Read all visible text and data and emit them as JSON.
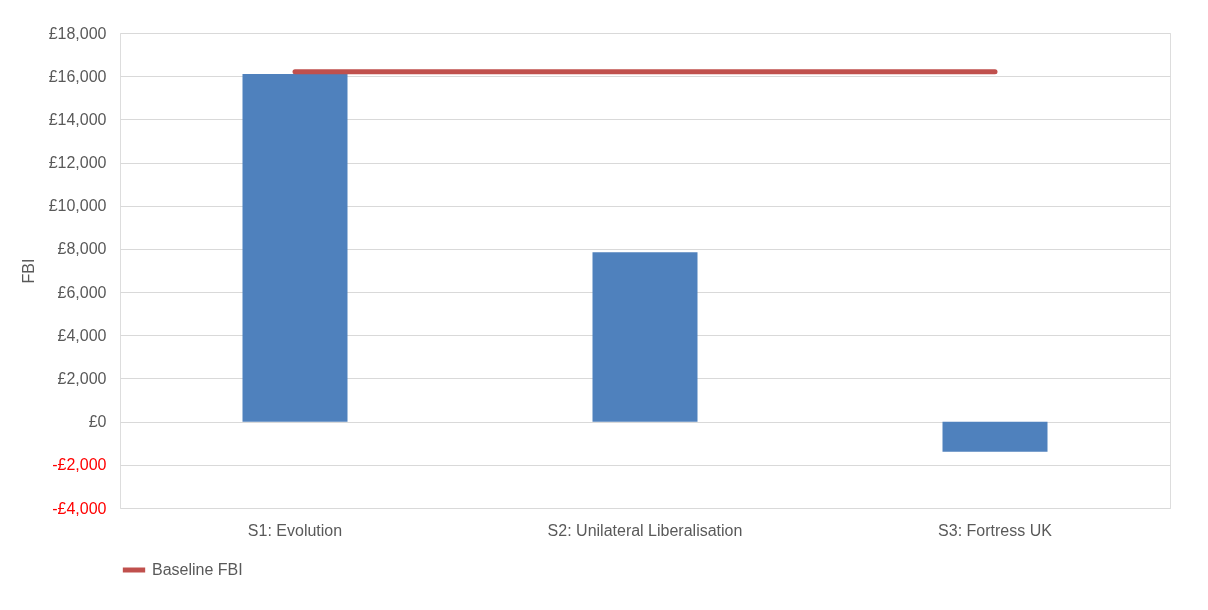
{
  "chart_data": {
    "type": "bar",
    "ylabel": "FBI",
    "categories": [
      "S1: Evolution",
      "S2: Unilateral Liberalisation",
      "S3: Fortress UK"
    ],
    "series": [
      {
        "color": "#4f81bd",
        "values": [
          16100,
          7850,
          -1400
        ]
      },
      {
        "type": "line",
        "name": "Baseline FBI",
        "color": "#c0504d",
        "values": [
          16200,
          16200,
          16200
        ]
      }
    ],
    "ylim": [
      -4000,
      18000
    ],
    "yticks": [
      {
        "value": -4000,
        "label": "-£4,000"
      },
      {
        "value": -2000,
        "label": "-£2,000"
      },
      {
        "value": 0,
        "label": "£0"
      },
      {
        "value": 2000,
        "label": "£2,000"
      },
      {
        "value": 4000,
        "label": "£4,000"
      },
      {
        "value": 6000,
        "label": "£6,000"
      },
      {
        "value": 8000,
        "label": "£8,000"
      },
      {
        "value": 10000,
        "label": "£10,000"
      },
      {
        "value": 12000,
        "label": "£12,000"
      },
      {
        "value": 14000,
        "label": "£14,000"
      },
      {
        "value": 16000,
        "label": "£16,000"
      },
      {
        "value": 18000,
        "label": "£18,000"
      }
    ],
    "grid": "y",
    "legend": "bottom"
  }
}
